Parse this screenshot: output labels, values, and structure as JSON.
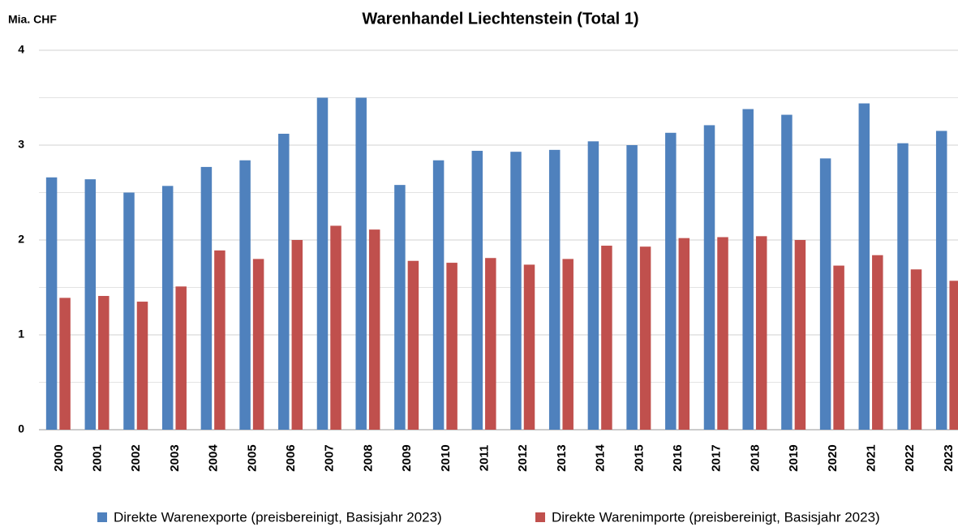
{
  "chart_data": {
    "type": "bar",
    "title": "Warenhandel Liechtenstein (Total 1)",
    "y_label": "Mia. CHF",
    "categories": [
      "2000",
      "2001",
      "2002",
      "2003",
      "2004",
      "2005",
      "2006",
      "2007",
      "2008",
      "2009",
      "2010",
      "2011",
      "2012",
      "2013",
      "2014",
      "2015",
      "2016",
      "2017",
      "2018",
      "2019",
      "2020",
      "2021",
      "2022",
      "2023"
    ],
    "series": [
      {
        "name": "Direkte Warenexporte (preisbereinigt, Basisjahr 2023)",
        "color": "#4f81bd",
        "values": [
          2.66,
          2.64,
          2.5,
          2.57,
          2.77,
          2.84,
          3.12,
          3.5,
          3.5,
          2.58,
          2.84,
          2.94,
          2.93,
          2.95,
          3.04,
          3.0,
          3.13,
          3.21,
          3.38,
          3.32,
          2.86,
          3.44,
          3.02,
          3.15
        ]
      },
      {
        "name": "Direkte Warenimporte (preisbereinigt, Basisjahr 2023)",
        "color": "#c0504d",
        "values": [
          1.39,
          1.41,
          1.35,
          1.51,
          1.89,
          1.8,
          2.0,
          2.15,
          2.11,
          1.78,
          1.76,
          1.81,
          1.74,
          1.8,
          1.94,
          1.93,
          2.02,
          2.03,
          2.04,
          2.0,
          1.73,
          1.84,
          1.69,
          1.57
        ]
      }
    ],
    "ylim": [
      0,
      4
    ],
    "yticks": [
      0,
      1,
      2,
      3,
      4
    ],
    "minor_yticks": [
      0.5,
      1.5,
      2.5,
      3.5
    ],
    "grid": true,
    "legend": "bottom"
  }
}
